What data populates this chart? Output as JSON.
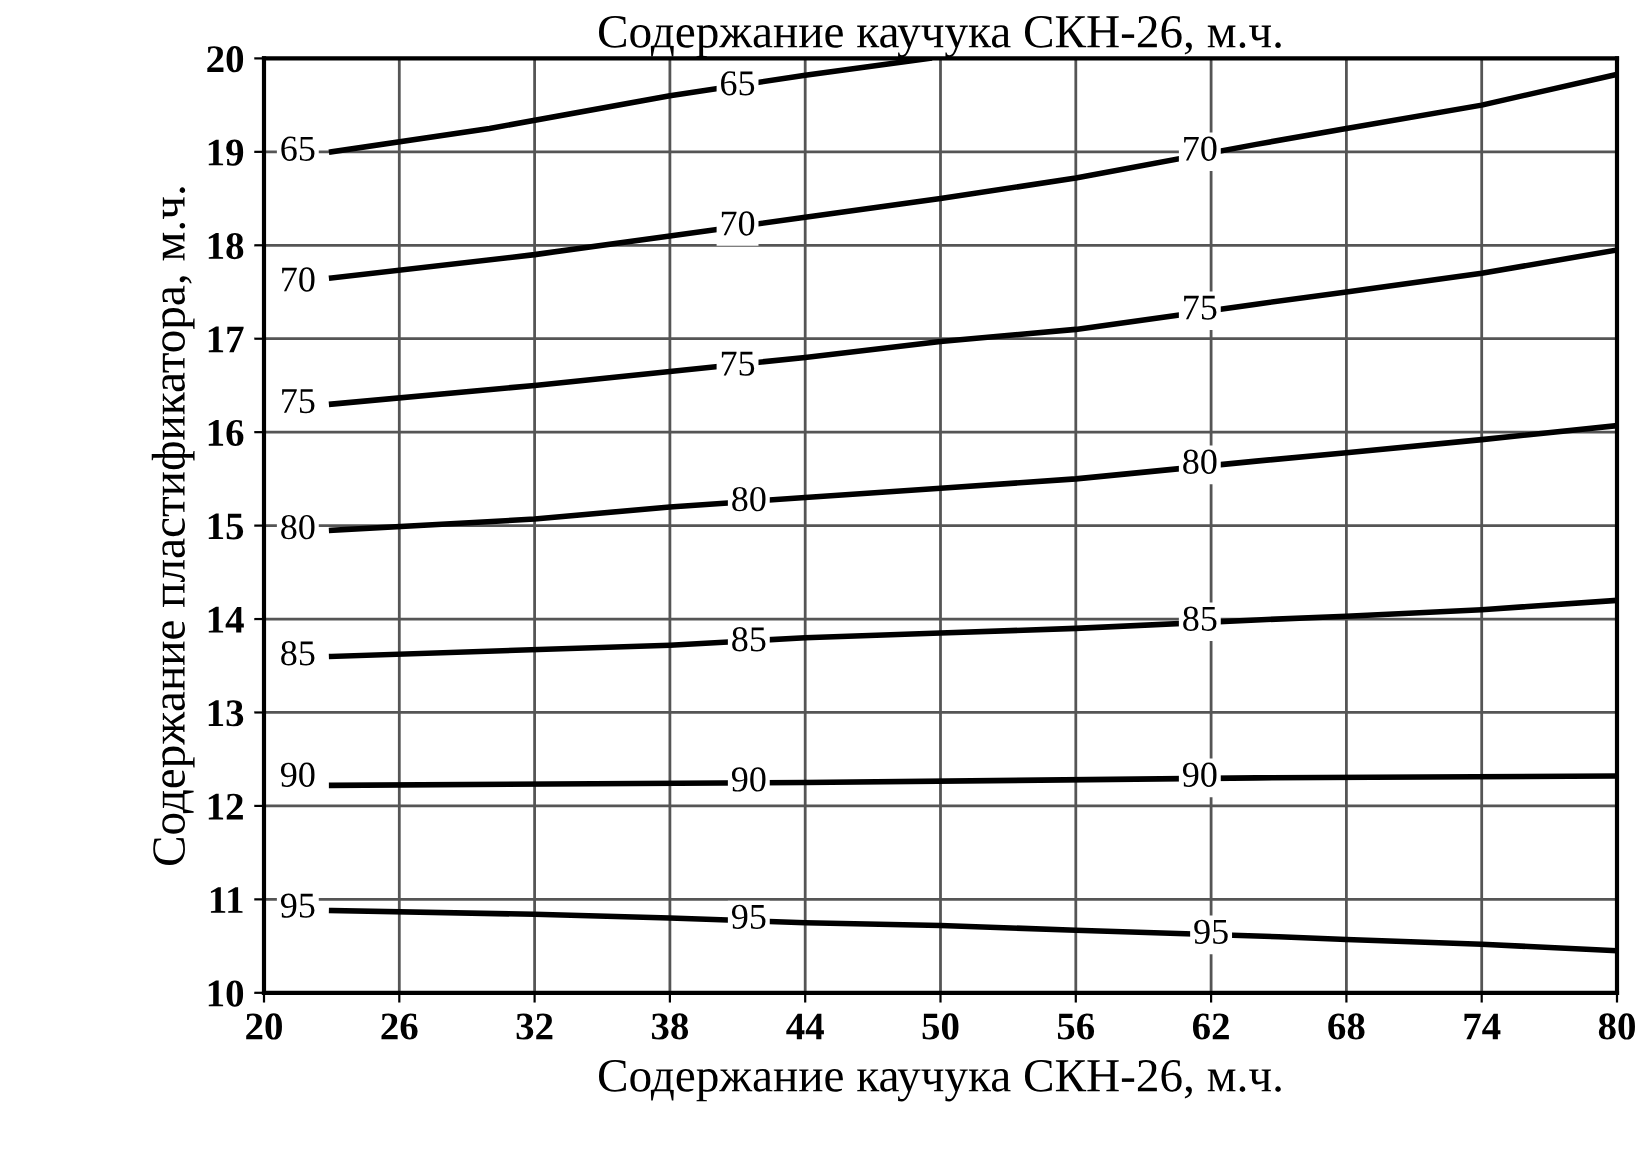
{
  "chart_data": {
    "type": "line",
    "title": "Содержание каучука СКН-26, м.ч.",
    "xlabel": "Содержание каучука СКН-26, м.ч.",
    "ylabel": "Содержание пластификатора, м.ч.",
    "xlim": [
      20,
      80
    ],
    "xticks": [
      20,
      26,
      32,
      38,
      44,
      50,
      56,
      62,
      68,
      74,
      80
    ],
    "ylim": [
      10,
      20
    ],
    "yticks": [
      10,
      11,
      12,
      13,
      14,
      15,
      16,
      17,
      18,
      19,
      20
    ],
    "grid": true,
    "marker": "none",
    "line_style": "solid",
    "series": [
      {
        "color": "#000000",
        "x": [
          23,
          30,
          38,
          44,
          49.5
        ],
        "values": [
          19.0,
          19.25,
          19.6,
          19.82,
          20.0
        ]
      },
      {
        "color": "#000000",
        "x": [
          23,
          32,
          38,
          44,
          50,
          56,
          64,
          68,
          74,
          80
        ],
        "values": [
          17.65,
          17.9,
          18.1,
          18.3,
          18.5,
          18.72,
          19.08,
          19.25,
          19.5,
          19.83
        ]
      },
      {
        "color": "#000000",
        "x": [
          23,
          32,
          38,
          44,
          50,
          56,
          64,
          68,
          74,
          80
        ],
        "values": [
          16.3,
          16.5,
          16.65,
          16.8,
          16.97,
          17.1,
          17.37,
          17.5,
          17.7,
          17.95
        ]
      },
      {
        "color": "#000000",
        "x": [
          23,
          32,
          38,
          44,
          50,
          56,
          64,
          68,
          74,
          80
        ],
        "values": [
          14.95,
          15.07,
          15.2,
          15.3,
          15.4,
          15.5,
          15.69,
          15.78,
          15.92,
          16.07
        ]
      },
      {
        "color": "#000000",
        "x": [
          23,
          38,
          44,
          50,
          56,
          64,
          68,
          74,
          80
        ],
        "values": [
          13.6,
          13.72,
          13.8,
          13.85,
          13.9,
          13.99,
          14.03,
          14.1,
          14.2
        ]
      },
      {
        "color": "#000000",
        "x": [
          23,
          44,
          64,
          80
        ],
        "values": [
          12.22,
          12.25,
          12.3,
          12.32
        ]
      },
      {
        "color": "#000000",
        "x": [
          23,
          32,
          38,
          44,
          50,
          56,
          65,
          68,
          74,
          80
        ],
        "values": [
          10.88,
          10.84,
          10.8,
          10.75,
          10.72,
          10.67,
          10.6,
          10.57,
          10.52,
          10.45
        ]
      }
    ],
    "annotations": [
      {
        "text": "65",
        "x": 21.5,
        "y": 19.0
      },
      {
        "text": "65",
        "x": 41,
        "y": 19.7
      },
      {
        "text": "70",
        "x": 21.5,
        "y": 17.6
      },
      {
        "text": "70",
        "x": 41,
        "y": 18.2
      },
      {
        "text": "70",
        "x": 61.5,
        "y": 19.0
      },
      {
        "text": "75",
        "x": 21.5,
        "y": 16.3
      },
      {
        "text": "75",
        "x": 41,
        "y": 16.7
      },
      {
        "text": "75",
        "x": 61.5,
        "y": 17.3
      },
      {
        "text": "80",
        "x": 21.5,
        "y": 14.95
      },
      {
        "text": "80",
        "x": 41.5,
        "y": 15.25
      },
      {
        "text": "80",
        "x": 61.5,
        "y": 15.65
      },
      {
        "text": "85",
        "x": 21.5,
        "y": 13.6
      },
      {
        "text": "85",
        "x": 41.5,
        "y": 13.75
      },
      {
        "text": "85",
        "x": 61.5,
        "y": 13.97
      },
      {
        "text": "90",
        "x": 21.5,
        "y": 12.3
      },
      {
        "text": "90",
        "x": 41.5,
        "y": 12.25
      },
      {
        "text": "90",
        "x": 61.5,
        "y": 12.3
      },
      {
        "text": "95",
        "x": 21.5,
        "y": 10.9
      },
      {
        "text": "95",
        "x": 41.5,
        "y": 10.78
      },
      {
        "text": "95",
        "x": 62,
        "y": 10.62
      }
    ]
  }
}
